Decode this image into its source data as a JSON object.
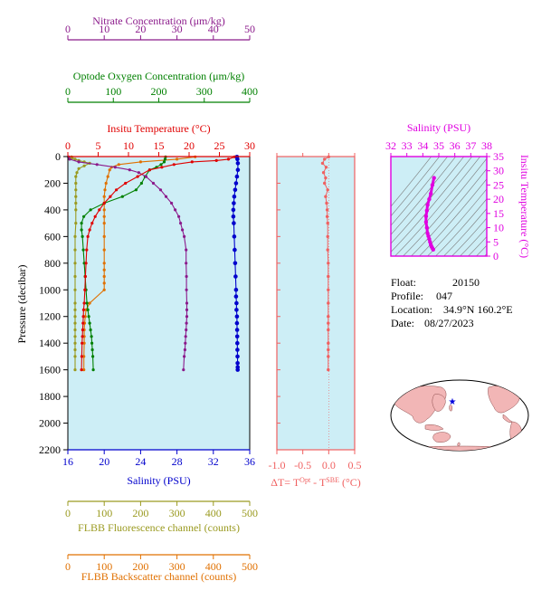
{
  "colors": {
    "nitrate": "#8b1a8b",
    "oxygen": "#008000",
    "temperature": "#e00000",
    "salinity": "#0000cc",
    "fluorescence": "#9a9a20",
    "backscatter": "#e07000",
    "delta": "#f06060",
    "ts": "#e000e0",
    "panel_bg": "#cdeef6"
  },
  "info": {
    "float_label": "Float:",
    "float_value": "20150",
    "profile_label": "Profile:",
    "profile_value": "047",
    "location_label": "Location:",
    "location_value": "34.9°N  160.2°E",
    "date_label": "Date:",
    "date_value": "08/27/2023"
  },
  "map": {
    "marker_lat": 34.9,
    "marker_lon": 160.2,
    "marker_symbol": "★"
  },
  "chart_data": [
    {
      "type": "line",
      "panel": "main-profile",
      "ylabel": "Pressure (decibar)",
      "ylim": [
        2200,
        0
      ],
      "yticks": [
        0,
        200,
        400,
        600,
        800,
        1000,
        1200,
        1400,
        1600,
        1800,
        2000,
        2200
      ],
      "grid": false,
      "axes": [
        {
          "key": "nitrate",
          "label": "Nitrate Concentration (μm/kg)",
          "lim": [
            0,
            50
          ],
          "ticks": [
            0,
            10,
            20,
            30,
            40,
            50
          ]
        },
        {
          "key": "oxygen",
          "label": "Optode Oxygen Concentration (μm/kg)",
          "lim": [
            0,
            400
          ],
          "ticks": [
            0,
            100,
            200,
            300,
            400
          ]
        },
        {
          "key": "temperature",
          "label": "Insitu Temperature (°C)",
          "lim": [
            0,
            30
          ],
          "ticks": [
            0,
            5,
            10,
            15,
            20,
            25,
            30
          ]
        },
        {
          "key": "salinity",
          "label": "Salinity (PSU)",
          "lim": [
            16,
            36
          ],
          "ticks": [
            16,
            20,
            24,
            28,
            32,
            36
          ]
        },
        {
          "key": "fluorescence",
          "label": "FLBB Fluorescence channel (counts)",
          "lim": [
            0,
            500
          ],
          "ticks": [
            0,
            100,
            200,
            300,
            400,
            500
          ]
        },
        {
          "key": "backscatter",
          "label": "FLBB Backscatter channel (counts)",
          "lim": [
            0,
            500
          ],
          "ticks": [
            0,
            100,
            200,
            300,
            400,
            500
          ]
        }
      ],
      "series": [
        {
          "key": "fluorescence",
          "x": [
            10,
            12,
            20,
            30,
            45,
            60,
            45,
            30,
            25,
            22,
            22,
            22,
            22,
            22,
            22,
            22,
            20,
            20,
            20,
            20,
            20,
            20,
            20,
            20,
            20,
            20,
            20,
            20,
            20,
            20,
            20
          ],
          "y": [
            2,
            10,
            20,
            30,
            40,
            50,
            70,
            90,
            120,
            150,
            200,
            250,
            300,
            350,
            400,
            500,
            600,
            700,
            800,
            900,
            1000,
            1100,
            1150,
            1200,
            1250,
            1300,
            1350,
            1400,
            1450,
            1500,
            1600
          ]
        },
        {
          "key": "backscatter",
          "x": [
            350,
            300,
            200,
            140,
            120,
            115,
            110,
            105,
            102,
            100,
            100,
            100,
            100,
            100,
            100,
            100,
            100,
            100,
            100,
            100,
            100,
            60,
            50,
            48,
            46,
            45,
            45,
            45,
            44,
            44
          ],
          "y": [
            2,
            20,
            40,
            60,
            80,
            100,
            150,
            200,
            250,
            300,
            350,
            400,
            450,
            500,
            600,
            700,
            800,
            850,
            900,
            950,
            1000,
            1100,
            1150,
            1200,
            1250,
            1300,
            1350,
            1400,
            1500,
            1600
          ]
        },
        {
          "key": "oxygen",
          "x": [
            215,
            214,
            212,
            205,
            195,
            180,
            170,
            162,
            150,
            120,
            80,
            50,
            35,
            30,
            30,
            32,
            34,
            36,
            38,
            40,
            42,
            44,
            46,
            48,
            50,
            52,
            53,
            54,
            55,
            56
          ],
          "y": [
            2,
            20,
            40,
            60,
            80,
            100,
            150,
            200,
            250,
            300,
            350,
            400,
            450,
            500,
            550,
            600,
            700,
            800,
            900,
            1000,
            1100,
            1150,
            1200,
            1250,
            1300,
            1350,
            1400,
            1450,
            1500,
            1600
          ]
        },
        {
          "key": "nitrate",
          "x": [
            0.2,
            0.5,
            3,
            8,
            13,
            17,
            19.5,
            21.5,
            23.5,
            25.5,
            27,
            28.5,
            29.5,
            30.5,
            31,
            31.5,
            32,
            32.5,
            32.5,
            32.6,
            32.6,
            32.7,
            32.7,
            32.7,
            32.6,
            32.5,
            32.4,
            32.3,
            32.2,
            32,
            31.8
          ],
          "y": [
            2,
            20,
            40,
            60,
            80,
            100,
            120,
            150,
            200,
            250,
            300,
            350,
            400,
            450,
            500,
            550,
            600,
            700,
            800,
            900,
            1000,
            1100,
            1150,
            1200,
            1250,
            1300,
            1350,
            1400,
            1450,
            1500,
            1600
          ]
        },
        {
          "key": "temperature",
          "x": [
            27.5,
            26.5,
            24.5,
            20.5,
            17.5,
            15.5,
            13.5,
            11.5,
            9.5,
            8,
            7,
            6,
            5.2,
            4.5,
            4,
            3.6,
            3.3,
            3.1,
            3,
            2.9,
            2.8,
            2.7,
            2.6,
            2.55,
            2.5,
            2.45,
            2.4,
            2.35,
            2.3,
            2.25
          ],
          "y": [
            2,
            20,
            30,
            40,
            60,
            80,
            100,
            150,
            200,
            250,
            300,
            350,
            400,
            450,
            500,
            550,
            600,
            700,
            800,
            900,
            1000,
            1100,
            1150,
            1200,
            1250,
            1300,
            1350,
            1400,
            1500,
            1600
          ]
        },
        {
          "key": "salinity",
          "x": [
            34.6,
            34.65,
            34.7,
            34.7,
            34.6,
            34.5,
            34.4,
            34.3,
            34.25,
            34.2,
            34.2,
            34.25,
            34.3,
            34.35,
            34.4,
            34.45,
            34.5,
            34.5,
            34.55,
            34.55,
            34.6,
            34.6,
            34.62,
            34.63,
            34.64,
            34.65,
            34.66,
            34.67,
            34.68,
            34.68
          ],
          "y": [
            2,
            20,
            50,
            100,
            150,
            200,
            250,
            300,
            350,
            400,
            450,
            500,
            600,
            700,
            800,
            900,
            1000,
            1050,
            1100,
            1150,
            1200,
            1250,
            1300,
            1350,
            1400,
            1450,
            1500,
            1550,
            1580,
            1600
          ]
        }
      ]
    },
    {
      "type": "line",
      "panel": "delta-t",
      "xlabel": "ΔT= T",
      "xlabel_sup1": "Opt",
      "xlabel_mid": " - T",
      "xlabel_sup2": "SBE",
      "xlabel_unit": " (°C)",
      "xlim": [
        -1.0,
        0.5
      ],
      "xticks": [
        -1.0,
        -0.5,
        0.0,
        0.5
      ],
      "ylim": [
        2200,
        0
      ],
      "series": [
        {
          "name": "",
          "x": [
            0,
            -0.08,
            -0.12,
            -0.05,
            -0.1,
            -0.06,
            -0.08,
            -0.02,
            -0.06,
            -0.04,
            -0.03,
            -0.03,
            -0.02,
            -0.02,
            -0.02,
            -0.01,
            -0.01,
            -0.01,
            -0.01,
            -0.01,
            -0.01,
            -0.01,
            -0.01,
            -0.01,
            -0.01,
            -0.01
          ],
          "y": [
            2,
            20,
            50,
            80,
            120,
            160,
            200,
            250,
            300,
            350,
            400,
            450,
            500,
            600,
            700,
            800,
            900,
            1000,
            1100,
            1200,
            1250,
            1300,
            1400,
            1450,
            1500,
            1600
          ]
        }
      ]
    },
    {
      "type": "line",
      "panel": "t-s",
      "xlabel": "Salinity (PSU)",
      "ylabel": "Insitu Temperature (°C)",
      "xlim": [
        32,
        38
      ],
      "xticks": [
        32,
        33,
        34,
        35,
        36,
        37,
        38
      ],
      "ylim": [
        0,
        35
      ],
      "yticks": [
        0,
        5,
        10,
        15,
        20,
        25,
        30,
        35
      ],
      "series": [
        {
          "name": "",
          "x": [
            34.65,
            34.6,
            34.55,
            34.5,
            34.45,
            34.4,
            34.35,
            34.3,
            34.25,
            34.2,
            34.2,
            34.25,
            34.3,
            34.4,
            34.5,
            34.6,
            34.7
          ],
          "y": [
            2.3,
            2.8,
            3.3,
            4.0,
            5.0,
            6.0,
            7.0,
            8.0,
            10.0,
            12.0,
            14.0,
            16.0,
            18.0,
            20.0,
            22.0,
            25.0,
            27.5
          ]
        }
      ]
    }
  ]
}
